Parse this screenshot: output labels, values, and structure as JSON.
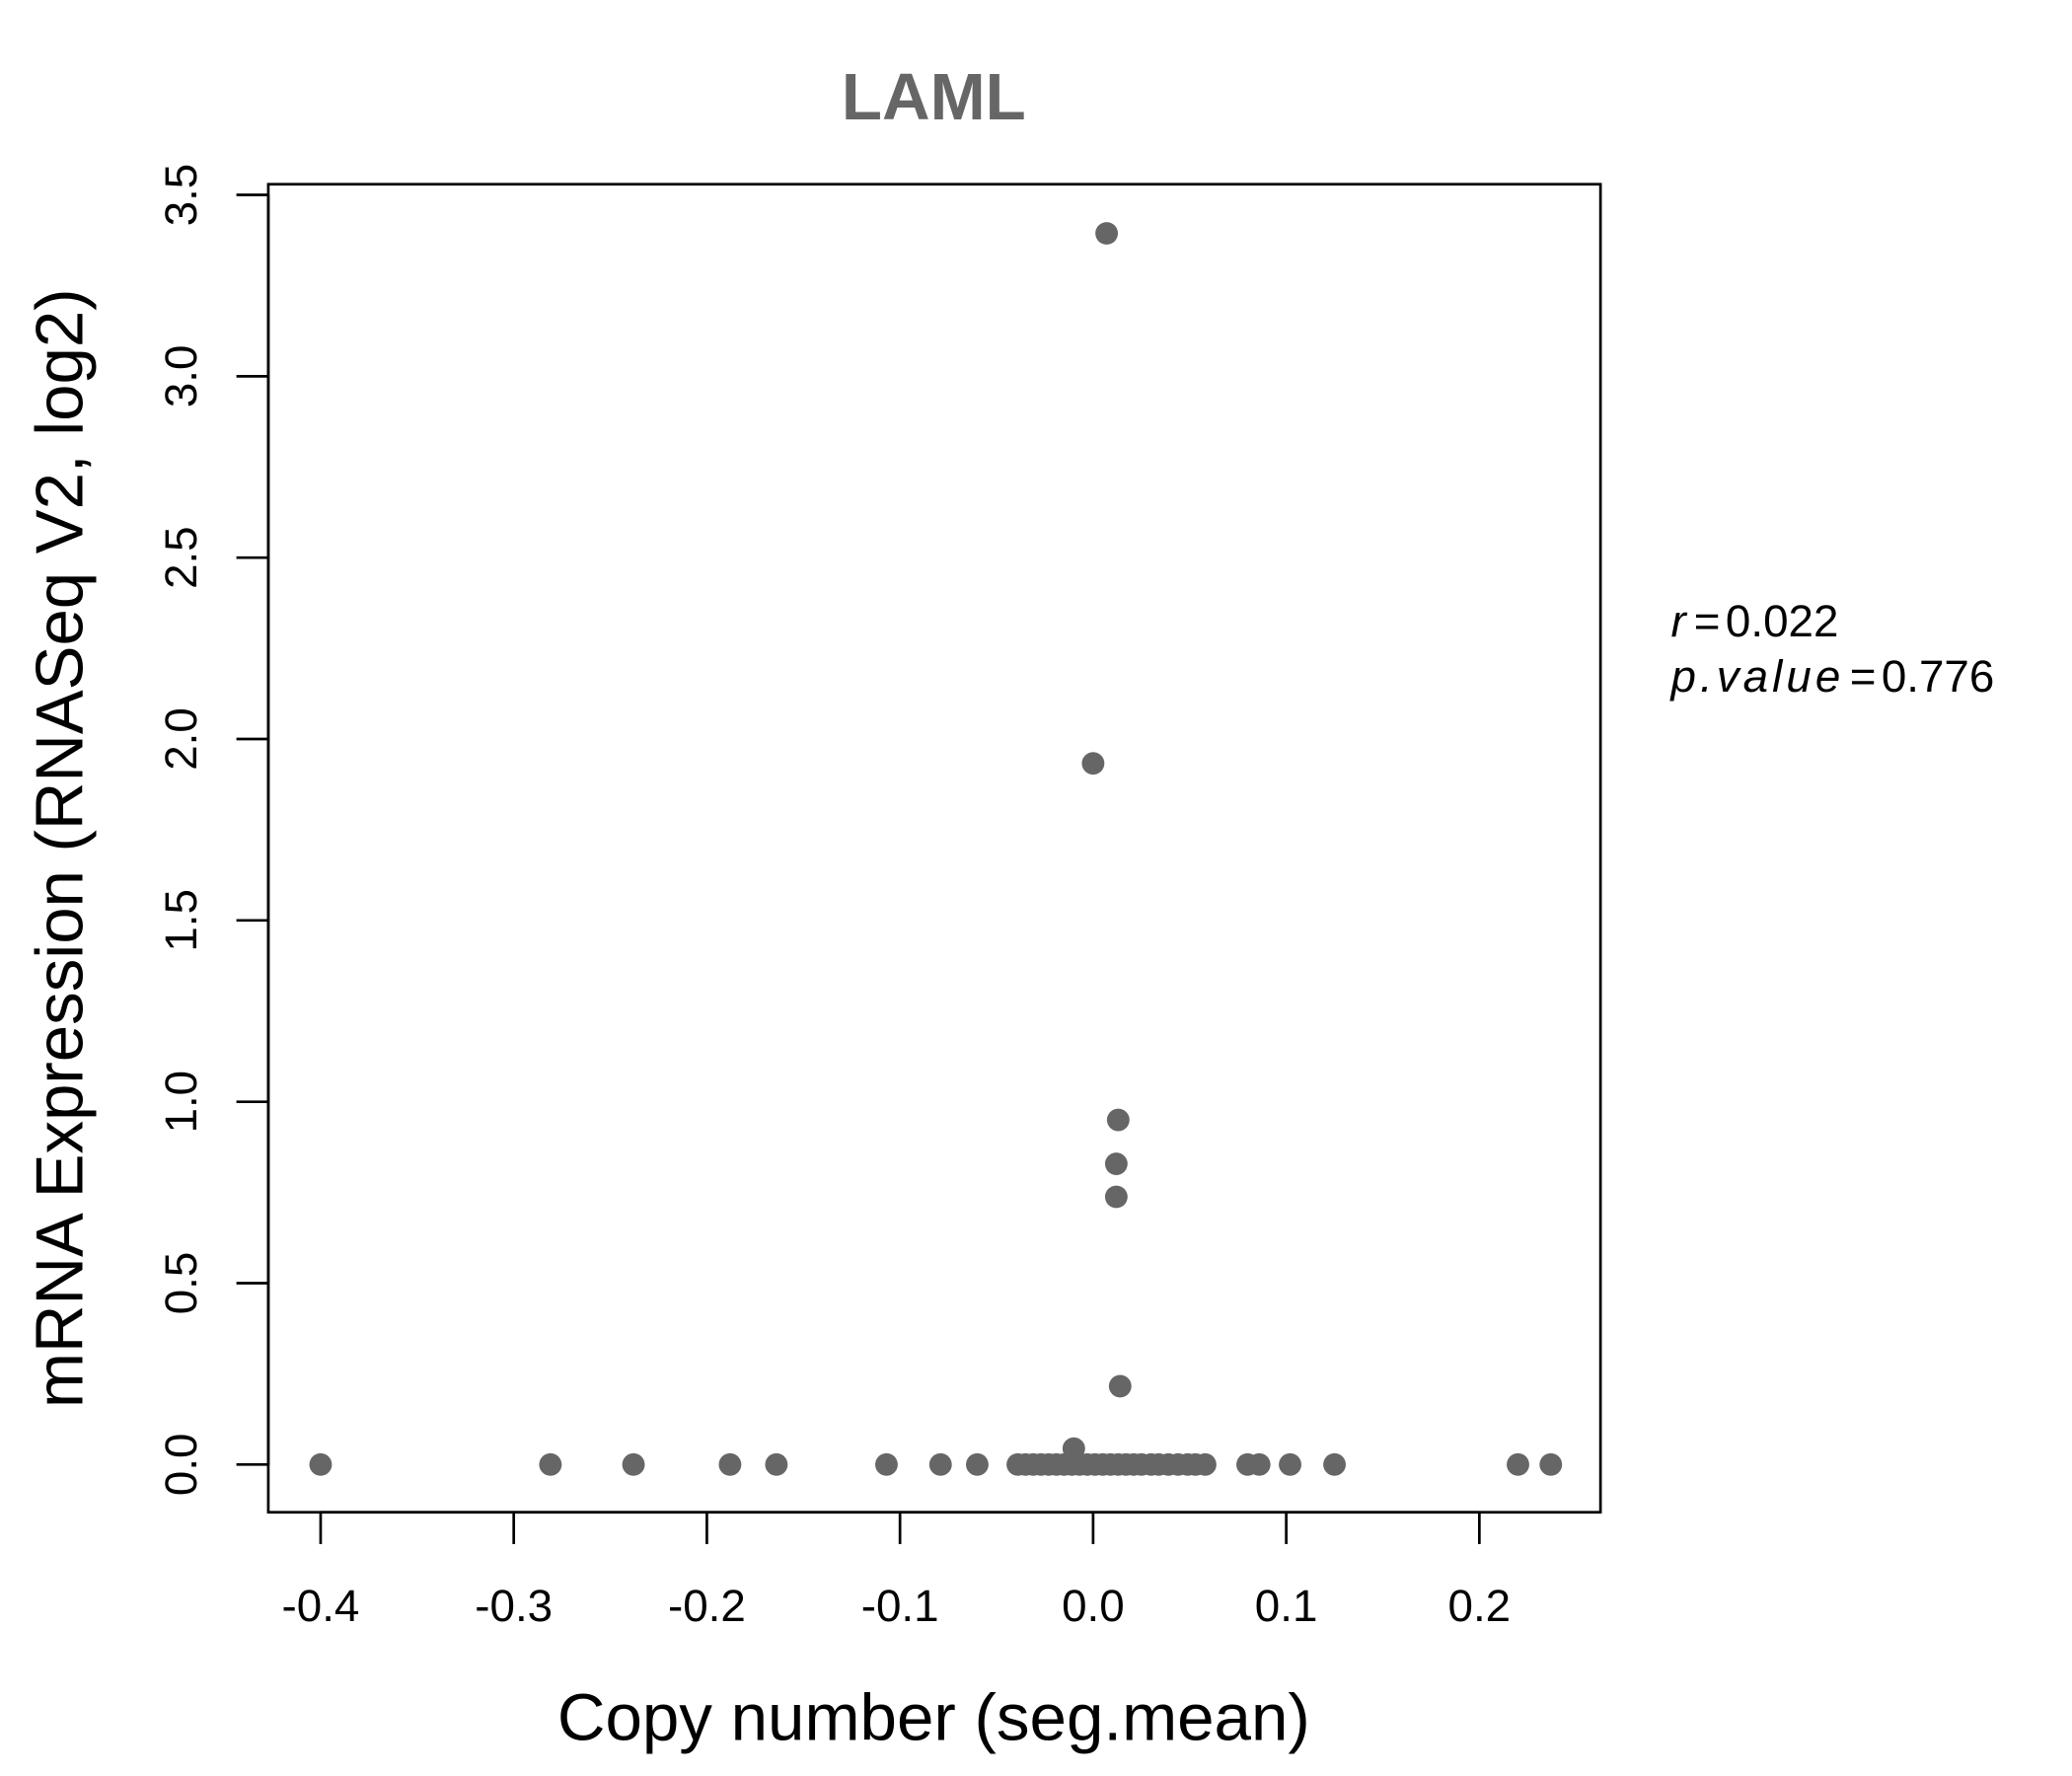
{
  "chart_data": {
    "type": "scatter",
    "title": "LAML",
    "xlabel": "Copy number (seg.mean)",
    "ylabel": "mRNA Expression (RNASeq V2, log2)",
    "xlim": [
      -0.4,
      0.2
    ],
    "ylim": [
      0,
      3.5
    ],
    "xticks": [
      -0.4,
      -0.3,
      -0.2,
      -0.1,
      0.0,
      0.1,
      0.2
    ],
    "xtick_labels": [
      "-0.4",
      "-0.3",
      "-0.2",
      "-0.1",
      "0.0",
      "0.1",
      "0.2"
    ],
    "yticks": [
      0,
      0.5,
      1,
      1.5,
      2,
      2.5,
      3,
      3.5
    ],
    "ytick_labels": [
      "0.0",
      "0.5",
      "1.0",
      "1.5",
      "2.0",
      "2.5",
      "3.0",
      "3.5"
    ],
    "grid": false,
    "point_color": "#666666",
    "annotation": {
      "r_label": "r",
      "r_value": "0.022",
      "p_label": "p.value",
      "p_value": "0.776",
      "eq": "="
    },
    "points": [
      [
        -0.4,
        0
      ],
      [
        -0.281,
        0
      ],
      [
        -0.238,
        0
      ],
      [
        -0.188,
        0
      ],
      [
        -0.164,
        0
      ],
      [
        -0.107,
        0
      ],
      [
        -0.079,
        0
      ],
      [
        -0.06,
        0
      ],
      [
        -0.039,
        0
      ],
      [
        -0.035,
        0
      ],
      [
        -0.031,
        0
      ],
      [
        -0.027,
        0
      ],
      [
        -0.023,
        0
      ],
      [
        -0.019,
        0
      ],
      [
        -0.015,
        0
      ],
      [
        -0.011,
        0
      ],
      [
        -0.007,
        0
      ],
      [
        -0.003,
        0
      ],
      [
        0.001,
        0
      ],
      [
        0.005,
        0
      ],
      [
        0.009,
        0
      ],
      [
        0.013,
        0
      ],
      [
        0.017,
        0
      ],
      [
        0.021,
        0
      ],
      [
        0.025,
        0
      ],
      [
        0.03,
        0
      ],
      [
        0.034,
        0
      ],
      [
        0.039,
        0
      ],
      [
        0.044,
        0
      ],
      [
        0.049,
        0
      ],
      [
        0.053,
        0
      ],
      [
        0.058,
        0
      ],
      [
        0.08,
        0
      ],
      [
        0.086,
        0
      ],
      [
        0.102,
        0
      ],
      [
        0.125,
        0
      ],
      [
        0.22,
        0
      ],
      [
        0.237,
        0
      ],
      [
        -0.01,
        0.044
      ],
      [
        0.014,
        0.216
      ],
      [
        0.012,
        0.738
      ],
      [
        0.012,
        0.829
      ],
      [
        0.013,
        0.95
      ],
      [
        0.0,
        1.933
      ],
      [
        0.007,
        3.394
      ]
    ]
  }
}
